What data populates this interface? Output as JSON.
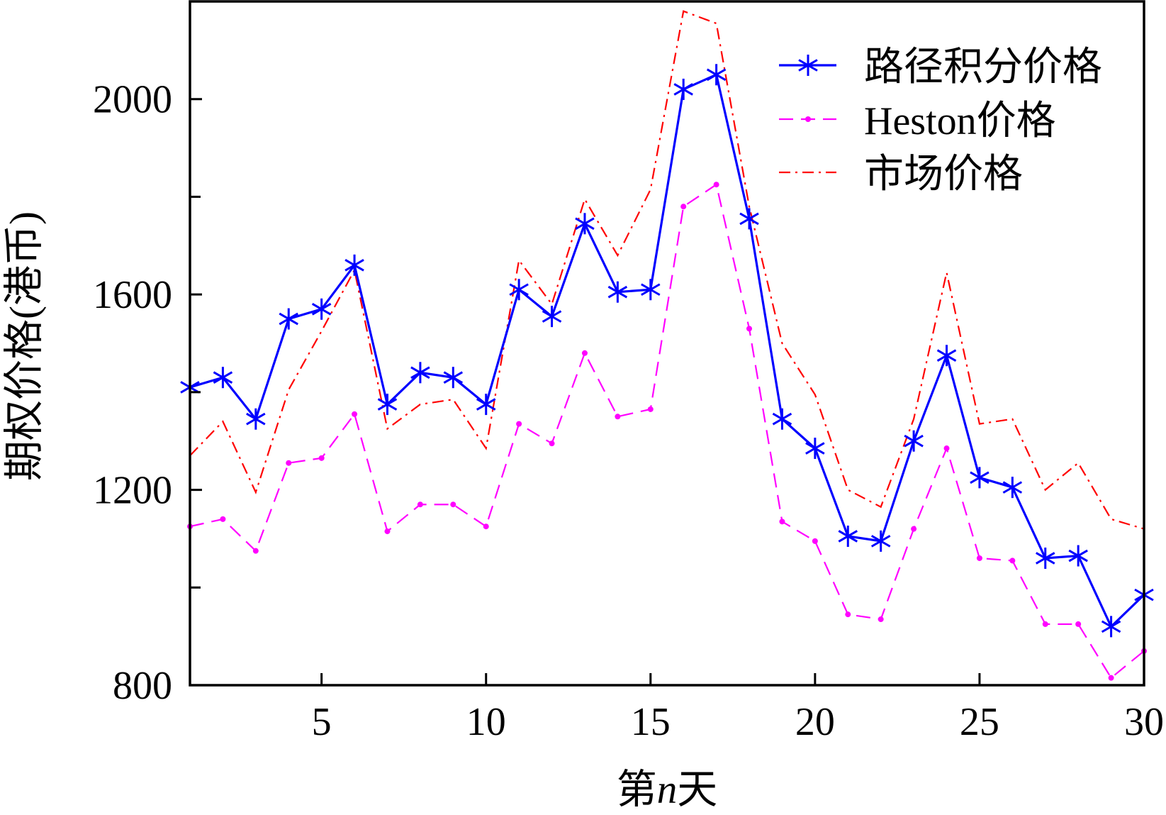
{
  "chart_data": {
    "type": "line",
    "xlabel": "第n天",
    "ylabel": "期权价格(港币)",
    "x": [
      1,
      2,
      3,
      4,
      5,
      6,
      7,
      8,
      9,
      10,
      11,
      12,
      13,
      14,
      15,
      16,
      17,
      18,
      19,
      20,
      21,
      22,
      23,
      24,
      25,
      26,
      27,
      28,
      29,
      30
    ],
    "xlim": [
      1,
      30
    ],
    "ylim": [
      800,
      2200
    ],
    "xticks": [
      5,
      10,
      15,
      20,
      25,
      30
    ],
    "yticks": [
      800,
      1200,
      1600,
      2000
    ],
    "yticks_minor": [
      1000,
      1400,
      1800
    ],
    "grid": false,
    "legend_position": "top-right",
    "series": [
      {
        "name": "路径积分价格",
        "color": "#0000ff",
        "line_style": "solid",
        "marker": "asterisk",
        "values": [
          1410,
          1430,
          1345,
          1550,
          1570,
          1660,
          1375,
          1440,
          1430,
          1375,
          1610,
          1555,
          1745,
          1605,
          1610,
          2020,
          2050,
          1755,
          1345,
          1285,
          1105,
          1095,
          1300,
          1475,
          1225,
          1205,
          1060,
          1065,
          920,
          985
        ]
      },
      {
        "name": "Heston价格",
        "color": "#ff00ff",
        "line_style": "dashed",
        "marker": "dot",
        "values": [
          1125,
          1140,
          1075,
          1255,
          1265,
          1355,
          1115,
          1170,
          1170,
          1125,
          1335,
          1295,
          1480,
          1350,
          1365,
          1780,
          1825,
          1530,
          1135,
          1095,
          945,
          935,
          1120,
          1285,
          1060,
          1055,
          925,
          925,
          815,
          870
        ]
      },
      {
        "name": "市场价格",
        "color": "#ff0000",
        "line_style": "dash-dot",
        "marker": "none",
        "values": [
          1270,
          1340,
          1195,
          1405,
          1525,
          1650,
          1325,
          1375,
          1385,
          1285,
          1670,
          1580,
          1795,
          1680,
          1815,
          2180,
          2155,
          1780,
          1500,
          1395,
          1200,
          1165,
          1345,
          1645,
          1335,
          1345,
          1200,
          1255,
          1140,
          1120
        ]
      }
    ]
  }
}
